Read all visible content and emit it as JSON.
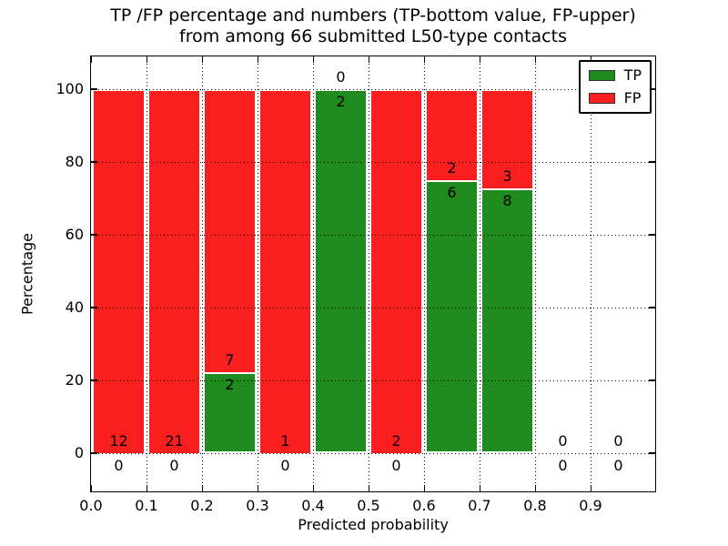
{
  "figure": {
    "title_line1": "TP /FP percentage and numbers (TP-bottom value, FP-upper)",
    "title_line2": "from among 66 submitted L50-type contacts",
    "xlabel": "Predicted probability",
    "ylabel": "Percentage"
  },
  "legend": {
    "position": "upper right",
    "items": [
      {
        "label": "TP",
        "color": "#1f8b1f"
      },
      {
        "label": "FP",
        "color": "#fa1f1f"
      }
    ]
  },
  "chart_data": {
    "type": "bar",
    "stacked": true,
    "title": "TP /FP percentage and numbers (TP-bottom value, FP-upper) from among 66 submitted L50-type contacts",
    "xlabel": "Predicted probability",
    "ylabel": "Percentage",
    "x_bin_starts": [
      0.0,
      0.1,
      0.2,
      0.3,
      0.4,
      0.5,
      0.6,
      0.7,
      0.8,
      0.9
    ],
    "x_bin_width": 0.1,
    "x_tick_labels": [
      "0.0",
      "0.1",
      "0.2",
      "0.3",
      "0.4",
      "0.5",
      "0.6",
      "0.7",
      "0.8",
      "0.9"
    ],
    "y_tick_values": [
      0,
      20,
      40,
      60,
      80,
      100
    ],
    "xlim": [
      0,
      1.0164
    ],
    "ylim": [
      -10.5,
      109
    ],
    "grid": "dotted",
    "legend_position": "upper right",
    "series": [
      {
        "name": "TP",
        "color": "#1f8b1f",
        "counts": [
          0,
          0,
          2,
          0,
          2,
          0,
          6,
          8,
          0,
          0
        ]
      },
      {
        "name": "FP",
        "color": "#fa1f1f",
        "counts": [
          12,
          21,
          7,
          1,
          0,
          2,
          2,
          3,
          0,
          0
        ]
      }
    ],
    "tp_percent_by_bin": [
      0,
      0,
      22.2,
      0,
      100,
      0,
      75,
      72.7,
      null,
      null
    ]
  }
}
